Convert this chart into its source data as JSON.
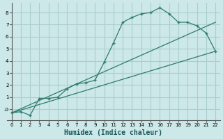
{
  "xlabel": "Humidex (Indice chaleur)",
  "ylabel": "",
  "bg_color": "#cce8e8",
  "grid_color": "#aacece",
  "line_color": "#2e7b6e",
  "xlim": [
    -0.5,
    22.5
  ],
  "ylim": [
    -0.9,
    8.8
  ],
  "xticks": [
    0,
    1,
    2,
    3,
    4,
    5,
    6,
    7,
    8,
    9,
    10,
    11,
    12,
    13,
    14,
    15,
    16,
    17,
    18,
    19,
    20,
    21,
    22
  ],
  "yticks": [
    0,
    1,
    2,
    3,
    4,
    5,
    6,
    7,
    8
  ],
  "ytick_labels": [
    "-0",
    "1",
    "2",
    "3",
    "4",
    "5",
    "6",
    "7",
    "8"
  ],
  "curve_x": [
    0,
    1,
    2,
    3,
    4,
    5,
    6,
    7,
    8,
    9,
    10,
    11,
    12,
    13,
    14,
    15,
    16,
    17,
    18,
    19,
    20,
    21,
    22
  ],
  "curve_y": [
    -0.3,
    -0.2,
    -0.5,
    0.9,
    0.9,
    1.0,
    1.7,
    2.1,
    2.2,
    2.4,
    3.9,
    5.5,
    7.2,
    7.6,
    7.9,
    8.0,
    8.4,
    7.9,
    7.2,
    7.2,
    6.9,
    6.3,
    4.8
  ],
  "line1_x": [
    0,
    22
  ],
  "line1_y": [
    -0.3,
    4.8
  ],
  "line2_x": [
    0,
    22
  ],
  "line2_y": [
    -0.3,
    7.2
  ]
}
